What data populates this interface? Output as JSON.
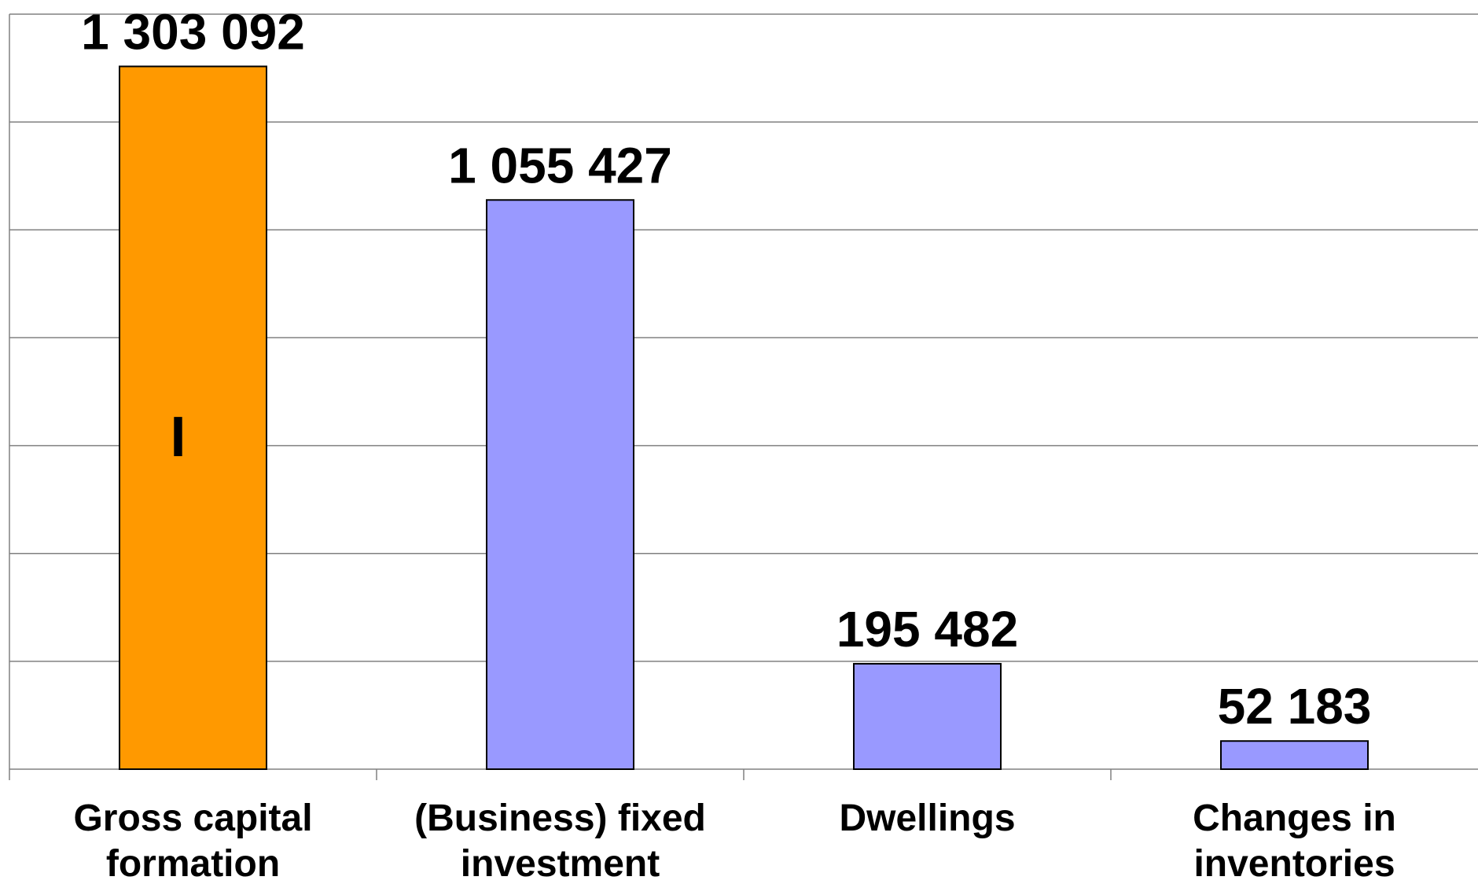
{
  "chart_data": {
    "type": "bar",
    "categories": [
      "Gross capital formation",
      "(Business) fixed investment",
      "Dwellings",
      "Changes in inventories"
    ],
    "values": [
      1303092,
      1055427,
      195482,
      52183
    ],
    "value_labels": [
      "1 303 092",
      "1 055 427",
      "195 482",
      "52 183"
    ],
    "colors": [
      "#ff9900",
      "#9999ff",
      "#9999ff",
      "#9999ff"
    ],
    "annotation": "I",
    "ylim": [
      0,
      1400000
    ],
    "yticks": [
      0,
      200000,
      400000,
      600000,
      800000,
      1000000,
      1200000,
      1400000
    ],
    "grid": true
  }
}
